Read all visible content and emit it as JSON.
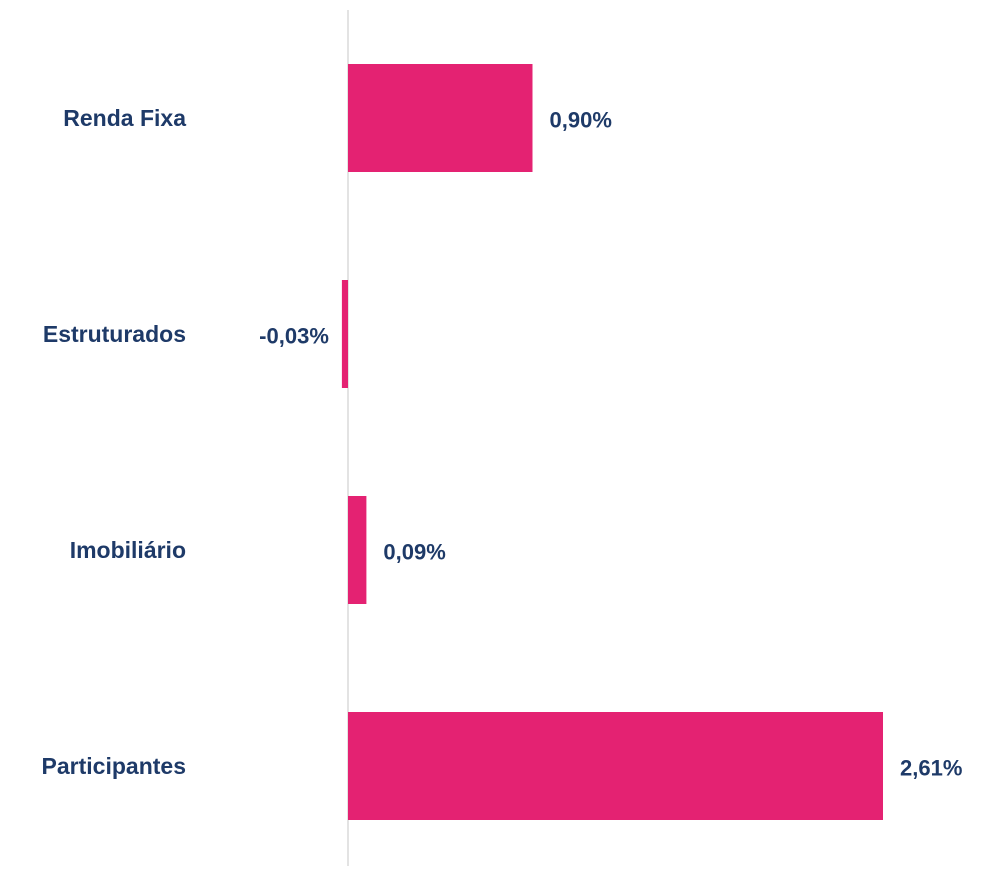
{
  "chart_data": {
    "type": "bar",
    "orientation": "horizontal",
    "categories": [
      "Renda Fixa",
      "Estruturados",
      "Imobiliário",
      "Participantes"
    ],
    "values": [
      0.9,
      -0.03,
      0.09,
      2.61
    ],
    "value_labels": [
      "0,90%",
      "-0,03%",
      "0,09%",
      "2,61%"
    ],
    "xlim": [
      -0.03,
      2.61
    ],
    "grid": false,
    "legend": "none",
    "colors": {
      "bar": "#E42272",
      "text": "#1E3A68",
      "axis": "#E3E3E3"
    }
  }
}
